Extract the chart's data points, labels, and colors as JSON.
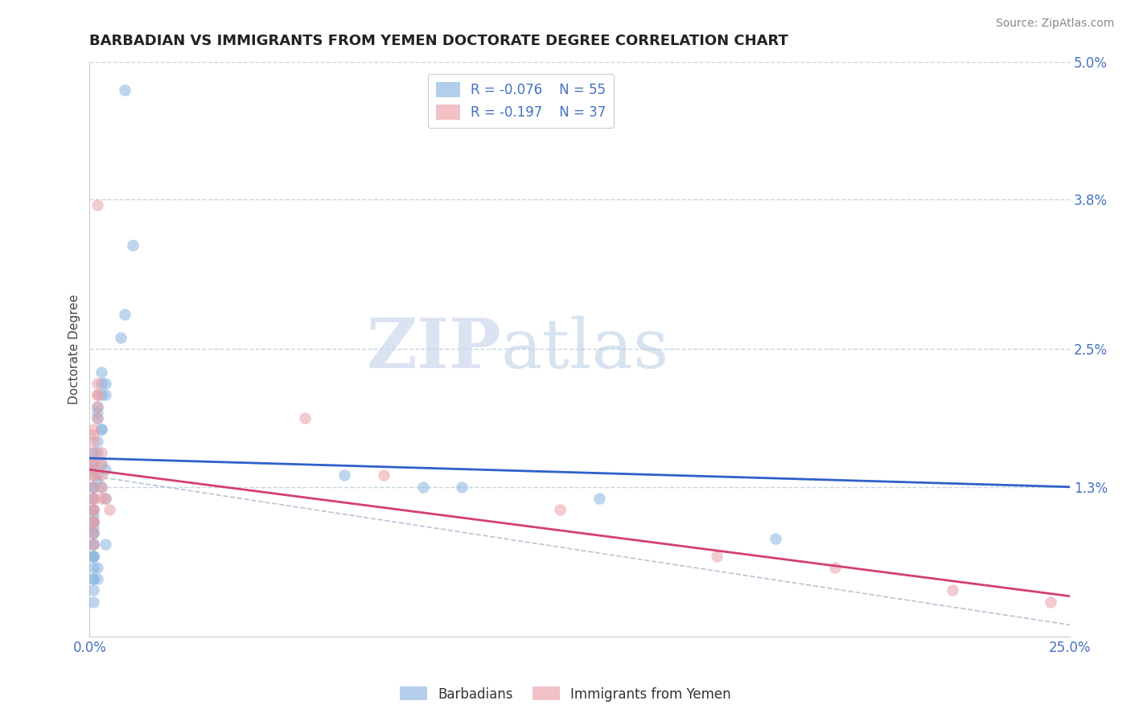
{
  "title": "BARBADIAN VS IMMIGRANTS FROM YEMEN DOCTORATE DEGREE CORRELATION CHART",
  "source": "Source: ZipAtlas.com",
  "ylabel": "Doctorate Degree",
  "xlim": [
    0.0,
    0.25
  ],
  "ylim": [
    0.0,
    0.05
  ],
  "xtick_vals": [
    0.0,
    0.25
  ],
  "xtick_labels": [
    "0.0%",
    "25.0%"
  ],
  "ytick_vals": [
    0.0,
    0.013,
    0.025,
    0.038,
    0.05
  ],
  "ytick_labels": [
    "",
    "1.3%",
    "2.5%",
    "3.8%",
    "5.0%"
  ],
  "legend_r1": "R = -0.076",
  "legend_n1": "N = 55",
  "legend_r2": "R = -0.197",
  "legend_n2": "N = 37",
  "blue_color": "#8ab4e0",
  "pink_color": "#e8a0a8",
  "line_blue": "#3060cc",
  "line_pink": "#d44070",
  "line_gray": "#aabbcc",
  "watermark_zip": "ZIP",
  "watermark_atlas": "atlas",
  "background_color": "#ffffff",
  "grid_color": "#c8d4e0",
  "title_color": "#222222",
  "tick_color": "#4472c4",
  "blue_scatter_x": [
    0.009,
    0.011,
    0.009,
    0.008,
    0.003,
    0.003,
    0.004,
    0.004,
    0.003,
    0.002,
    0.002,
    0.002,
    0.003,
    0.003,
    0.002,
    0.002,
    0.001,
    0.001,
    0.001,
    0.002,
    0.002,
    0.001,
    0.001,
    0.001,
    0.001,
    0.001,
    0.001,
    0.001,
    0.001,
    0.001,
    0.001,
    0.001,
    0.001,
    0.001,
    0.001,
    0.001,
    0.001,
    0.001,
    0.001,
    0.002,
    0.002,
    0.001,
    0.001,
    0.001,
    0.001,
    0.003,
    0.004,
    0.003,
    0.004,
    0.004,
    0.065,
    0.085,
    0.095,
    0.13,
    0.175
  ],
  "blue_scatter_y": [
    0.0475,
    0.034,
    0.028,
    0.026,
    0.023,
    0.022,
    0.022,
    0.021,
    0.021,
    0.02,
    0.0195,
    0.019,
    0.018,
    0.018,
    0.017,
    0.016,
    0.016,
    0.015,
    0.0145,
    0.014,
    0.0135,
    0.013,
    0.013,
    0.012,
    0.012,
    0.011,
    0.011,
    0.0105,
    0.01,
    0.01,
    0.0095,
    0.009,
    0.009,
    0.008,
    0.008,
    0.007,
    0.007,
    0.007,
    0.006,
    0.006,
    0.005,
    0.005,
    0.005,
    0.004,
    0.003,
    0.015,
    0.0145,
    0.013,
    0.012,
    0.008,
    0.014,
    0.013,
    0.013,
    0.012,
    0.0085
  ],
  "pink_scatter_x": [
    0.002,
    0.002,
    0.002,
    0.002,
    0.002,
    0.002,
    0.001,
    0.001,
    0.001,
    0.001,
    0.001,
    0.001,
    0.001,
    0.001,
    0.001,
    0.001,
    0.001,
    0.001,
    0.001,
    0.001,
    0.001,
    0.001,
    0.001,
    0.003,
    0.003,
    0.003,
    0.003,
    0.003,
    0.004,
    0.005,
    0.055,
    0.075,
    0.12,
    0.16,
    0.19,
    0.22,
    0.245
  ],
  "pink_scatter_y": [
    0.0375,
    0.022,
    0.021,
    0.021,
    0.02,
    0.019,
    0.018,
    0.0175,
    0.017,
    0.016,
    0.015,
    0.015,
    0.014,
    0.014,
    0.013,
    0.012,
    0.012,
    0.011,
    0.011,
    0.01,
    0.01,
    0.009,
    0.008,
    0.016,
    0.015,
    0.014,
    0.013,
    0.012,
    0.012,
    0.011,
    0.019,
    0.014,
    0.011,
    0.007,
    0.006,
    0.004,
    0.003
  ],
  "blue_trendline_x0": 0.0,
  "blue_trendline_x1": 0.25,
  "blue_trendline_y0": 0.0155,
  "blue_trendline_y1": 0.013,
  "pink_trendline_x0": 0.0,
  "pink_trendline_x1": 0.25,
  "pink_trendline_y0": 0.0145,
  "pink_trendline_y1": 0.0035,
  "gray_trendline_x0": 0.0,
  "gray_trendline_x1": 0.25,
  "gray_trendline_y0": 0.014,
  "gray_trendline_y1": 0.001
}
